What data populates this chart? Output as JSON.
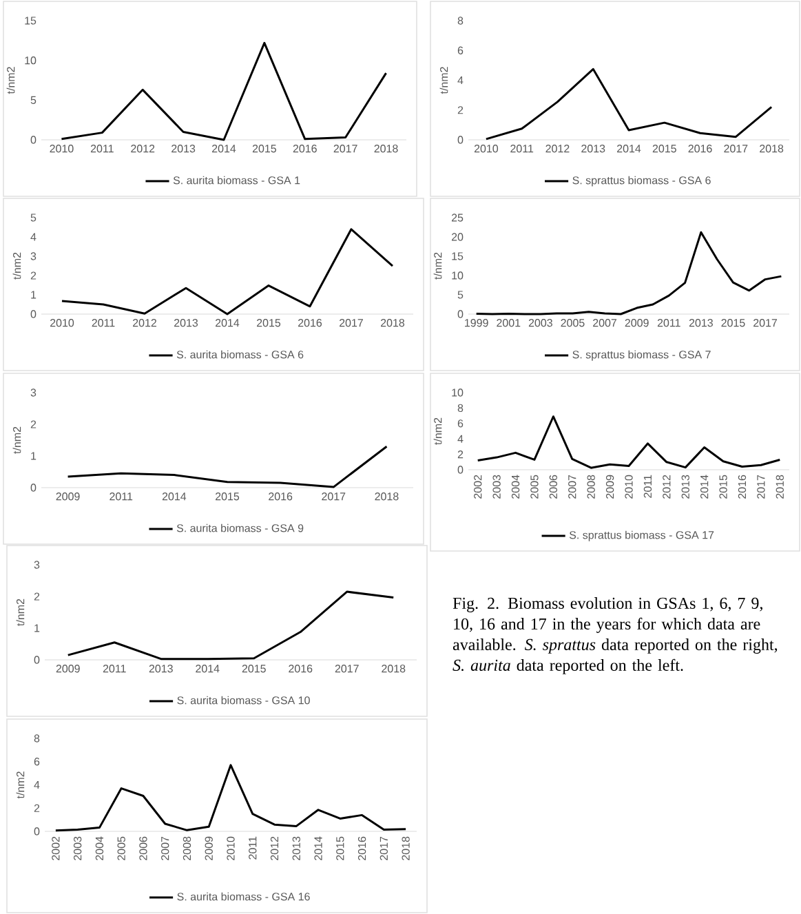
{
  "chart_data": [
    {
      "type": "line",
      "ylabel": "t/nm2",
      "categories": [
        "2010",
        "2011",
        "2012",
        "2013",
        "2014",
        "2015",
        "2016",
        "2017",
        "2018"
      ],
      "ylim": [
        0,
        15
      ],
      "yticks": [
        0,
        5,
        10,
        15
      ],
      "legend": "bottom",
      "series": [
        {
          "name": "S. aurita biomass - GSA 1",
          "color": "#000000",
          "values": [
            0.1,
            0.9,
            6.3,
            1.0,
            0.0,
            12.2,
            0.1,
            0.3,
            8.4
          ]
        }
      ]
    },
    {
      "type": "line",
      "ylabel": "t/nm2",
      "categories": [
        "2010",
        "2011",
        "2012",
        "2013",
        "2014",
        "2015",
        "2016",
        "2017",
        "2018"
      ],
      "ylim": [
        0,
        8
      ],
      "yticks": [
        0,
        2,
        4,
        6,
        8
      ],
      "legend": "bottom",
      "series": [
        {
          "name": "S. sprattus biomass - GSA 6",
          "color": "#000000",
          "values": [
            0.05,
            0.75,
            2.55,
            4.75,
            0.65,
            1.15,
            0.45,
            0.2,
            2.2
          ]
        }
      ]
    },
    {
      "type": "line",
      "ylabel": "t/nm2",
      "categories": [
        "2010",
        "2011",
        "2012",
        "2013",
        "2014",
        "2015",
        "2016",
        "2017",
        "2018"
      ],
      "ylim": [
        0,
        5
      ],
      "yticks": [
        0,
        1,
        2,
        3,
        4,
        5
      ],
      "legend": "bottom",
      "series": [
        {
          "name": "S. aurita biomass - GSA 6",
          "color": "#000000",
          "values": [
            0.68,
            0.5,
            0.03,
            1.35,
            0.0,
            1.48,
            0.4,
            4.4,
            2.5
          ]
        }
      ]
    },
    {
      "type": "line",
      "ylabel": "t/nm2",
      "categories": [
        "1999",
        null,
        "2001",
        null,
        "2003",
        null,
        "2005",
        null,
        "2007",
        null,
        "2009",
        null,
        "2011",
        null,
        "2013",
        null,
        "2015",
        null,
        "2017",
        null
      ],
      "ylim": [
        0,
        25
      ],
      "yticks": [
        0,
        5,
        10,
        15,
        20,
        25
      ],
      "legend": "bottom",
      "series": [
        {
          "name": "S. sprattus biomass - GSA 7",
          "color": "#000000",
          "values": [
            0.1,
            0.0,
            0.1,
            0.0,
            0.0,
            0.2,
            0.2,
            0.6,
            0.2,
            0.0,
            1.6,
            2.5,
            4.8,
            8.1,
            21.2,
            14.2,
            8.2,
            6.1,
            9.0,
            9.8
          ]
        }
      ]
    },
    {
      "type": "line",
      "ylabel": "t/nm2",
      "categories": [
        "2009",
        "2011",
        "2014",
        "2015",
        "2016",
        "2017",
        "2018"
      ],
      "ylim": [
        0,
        3
      ],
      "yticks": [
        0,
        1,
        2,
        3
      ],
      "legend": "bottom",
      "annotations": [
        "Fig. 2. Biomass evolution in GSAs 1, 6, 7 9, 10, 16 and 17 in the years for which data are available. *S. sprattus* data reported on the right, *S. aurita* data reported on the left."
      ],
      "series": [
        {
          "name": "S. aurita biomass - GSA 9",
          "color": "#000000",
          "values": [
            0.35,
            0.45,
            0.4,
            0.18,
            0.15,
            0.02,
            1.3
          ]
        }
      ]
    },
    {
      "type": "line",
      "ylabel": "t/nm2",
      "categories": [
        "2002",
        "2003",
        "2004",
        "2005",
        "2006",
        "2007",
        "2008",
        "2009",
        "2010",
        "2011",
        "2012",
        "2013",
        "2014",
        "2015",
        "2016",
        "2017",
        "2018"
      ],
      "ylim": [
        0,
        10
      ],
      "yticks": [
        0,
        2,
        4,
        6,
        8,
        10
      ],
      "legend": "bottom",
      "series": [
        {
          "name": "S. sprattus biomass - GSA 17",
          "color": "#000000",
          "values": [
            1.2,
            1.6,
            2.2,
            1.3,
            6.9,
            1.4,
            0.25,
            0.7,
            0.5,
            3.4,
            1.0,
            0.3,
            2.9,
            1.1,
            0.4,
            0.6,
            1.3
          ]
        }
      ]
    },
    {
      "type": "line",
      "ylabel": "t/nm2",
      "categories": [
        "2009",
        "2011",
        "2013",
        "2014",
        "2015",
        "2016",
        "2017",
        "2018"
      ],
      "ylim": [
        0,
        3
      ],
      "yticks": [
        0,
        1,
        2,
        3
      ],
      "legend": "bottom",
      "series": [
        {
          "name": "S. aurita biomass - GSA 10",
          "color": "#000000",
          "values": [
            0.15,
            0.55,
            0.03,
            0.03,
            0.05,
            0.88,
            2.15,
            1.97
          ]
        }
      ]
    },
    {
      "type": "line",
      "ylabel": "t/nm2",
      "categories": [
        "2002",
        "2003",
        "2004",
        "2005",
        "2006",
        "2007",
        "2008",
        "2009",
        "2010",
        "2011",
        "2012",
        "2013",
        "2014",
        "2015",
        "2016",
        "2017",
        "2018"
      ],
      "ylim": [
        0,
        8
      ],
      "yticks": [
        0,
        2,
        4,
        6,
        8
      ],
      "legend": "bottom",
      "series": [
        {
          "name": "S. aurita biomass - GSA 16",
          "color": "#000000",
          "values": [
            0.08,
            0.15,
            0.32,
            3.7,
            3.05,
            0.65,
            0.1,
            0.4,
            5.7,
            1.5,
            0.58,
            0.45,
            1.85,
            1.1,
            1.4,
            0.15,
            0.2
          ]
        }
      ]
    }
  ]
}
